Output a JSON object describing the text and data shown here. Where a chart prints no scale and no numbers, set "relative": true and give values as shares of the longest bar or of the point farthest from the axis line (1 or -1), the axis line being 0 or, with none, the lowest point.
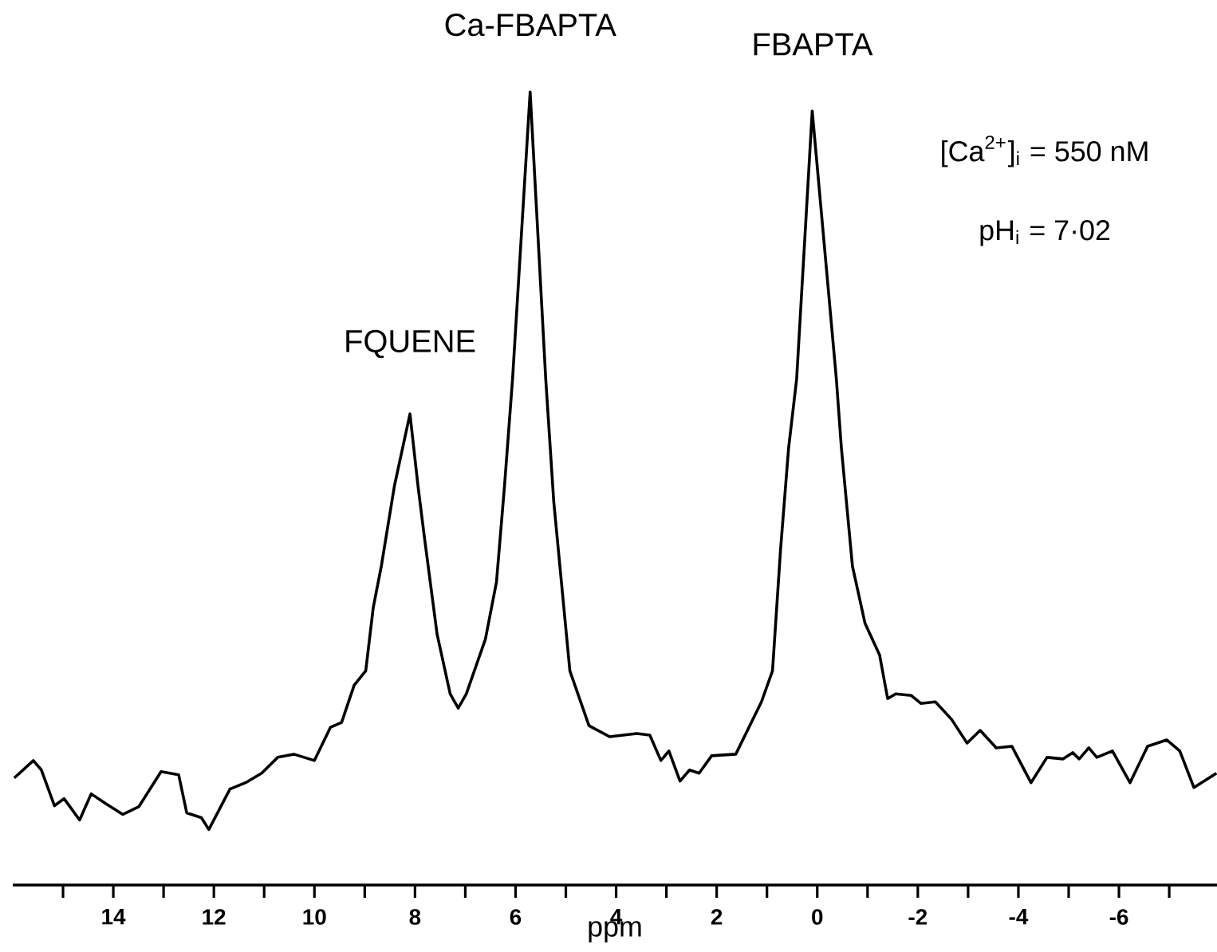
{
  "chart_data": {
    "type": "line",
    "relative": true,
    "xlabel": "ppm",
    "xlim": [
      16,
      -7.95
    ],
    "xticks": [
      {
        "value": 15,
        "label": null
      },
      14,
      {
        "value": 13,
        "label": null
      },
      12,
      {
        "value": 11,
        "label": null
      },
      10,
      {
        "value": 9,
        "label": null
      },
      8,
      {
        "value": 7,
        "label": null
      },
      6,
      {
        "value": 5,
        "label": null
      },
      4,
      {
        "value": 3,
        "label": null
      },
      2,
      {
        "value": 1,
        "label": null
      },
      0,
      {
        "value": -1,
        "label": null
      },
      -2,
      {
        "value": -3,
        "label": null
      },
      -4,
      {
        "value": -5,
        "label": null
      },
      -6,
      {
        "value": -7,
        "label": null
      }
    ],
    "marker": "none",
    "line_style": "solid",
    "series": [
      {
        "color": "#000000",
        "x": [
          15.97,
          15.59,
          15.43,
          15.17,
          14.98,
          14.67,
          14.44,
          14.16,
          13.81,
          13.49,
          13.05,
          12.7,
          12.54,
          12.25,
          12.1,
          11.68,
          11.37,
          11.05,
          10.73,
          10.41,
          10.0,
          9.68,
          9.46,
          9.21,
          8.98,
          8.83,
          8.67,
          8.41,
          8.1,
          7.94,
          7.81,
          7.56,
          7.3,
          7.14,
          6.98,
          6.6,
          6.38,
          6.22,
          6.06,
          5.71,
          5.4,
          5.24,
          4.92,
          4.54,
          4.13,
          3.59,
          3.33,
          3.11,
          2.95,
          2.73,
          2.54,
          2.35,
          2.1,
          1.62,
          1.11,
          0.89,
          0.73,
          0.57,
          0.41,
          0.1,
          -0.38,
          -0.48,
          -0.7,
          -0.95,
          -1.24,
          -1.4,
          -1.56,
          -1.87,
          -2.06,
          -2.35,
          -2.67,
          -2.98,
          -3.24,
          -3.56,
          -3.87,
          -4.25,
          -4.57,
          -4.89,
          -5.08,
          -5.21,
          -5.4,
          -5.56,
          -5.87,
          -6.22,
          -6.57,
          -6.95,
          -7.21,
          -7.49,
          -7.94
        ],
        "values": [
          0.135,
          0.157,
          0.145,
          0.1,
          0.109,
          0.082,
          0.115,
          0.103,
          0.089,
          0.099,
          0.143,
          0.139,
          0.091,
          0.085,
          0.07,
          0.121,
          0.129,
          0.141,
          0.161,
          0.165,
          0.157,
          0.199,
          0.205,
          0.252,
          0.27,
          0.35,
          0.402,
          0.503,
          0.594,
          0.503,
          0.437,
          0.316,
          0.241,
          0.223,
          0.241,
          0.31,
          0.382,
          0.503,
          0.638,
          1,
          0.638,
          0.483,
          0.27,
          0.201,
          0.187,
          0.191,
          0.189,
          0.157,
          0.169,
          0.131,
          0.145,
          0.141,
          0.163,
          0.165,
          0.231,
          0.27,
          0.423,
          0.551,
          0.638,
          0.976,
          0.638,
          0.551,
          0.402,
          0.33,
          0.29,
          0.235,
          0.241,
          0.239,
          0.229,
          0.231,
          0.209,
          0.179,
          0.195,
          0.173,
          0.175,
          0.129,
          0.161,
          0.159,
          0.167,
          0.159,
          0.173,
          0.161,
          0.169,
          0.129,
          0.175,
          0.183,
          0.169,
          0.123,
          0.141
        ]
      }
    ],
    "annotations": [
      {
        "text": "FQUENE",
        "x": 8.1,
        "y": 0.594
      },
      {
        "text": "Ca-FBAPTA",
        "x": 5.71,
        "y": 1
      },
      {
        "text": "FBAPTA",
        "x": 0.1,
        "y": 0.976
      },
      "[Ca$^{2+}$]$_{i}$ = 550 nM",
      "pH$_{i}$ = 7·02"
    ]
  }
}
